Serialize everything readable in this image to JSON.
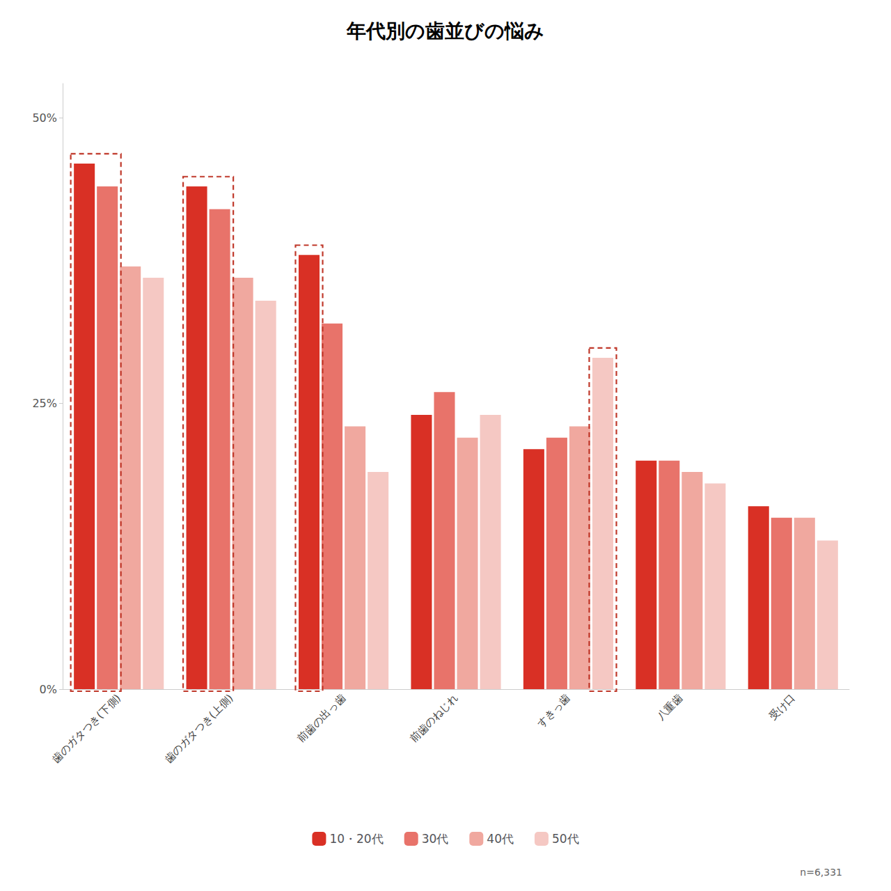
{
  "chart_data": {
    "type": "bar",
    "title": "年代別の歯並びの悩み",
    "categories": [
      "歯のガタつき(下側)",
      "歯のガタつき(上側)",
      "前歯の出っ歯",
      "前歯のねじれ",
      "すきっ歯",
      "八重歯",
      "受け口"
    ],
    "series": [
      {
        "name": "10・20代",
        "color": "#d93025",
        "values": [
          46,
          44,
          38,
          24,
          21,
          20,
          16
        ]
      },
      {
        "name": "30代",
        "color": "#e8736a",
        "values": [
          44,
          42,
          32,
          26,
          22,
          20,
          15
        ]
      },
      {
        "name": "40代",
        "color": "#f0a89f",
        "values": [
          37,
          36,
          23,
          22,
          23,
          19,
          15
        ]
      },
      {
        "name": "50代",
        "color": "#f5c8c3",
        "values": [
          36,
          34,
          19,
          24,
          29,
          18,
          13
        ]
      }
    ],
    "ylim": [
      0,
      53
    ],
    "yticks": [
      {
        "value": 0,
        "label": "0%"
      },
      {
        "value": 25,
        "label": "25%"
      },
      {
        "value": 50,
        "label": "50%"
      }
    ],
    "grid": false,
    "legend": "bottom",
    "annotations": [
      {
        "text": "n=6,331"
      }
    ],
    "highlights": [
      {
        "category": "歯のガタつき(下側)",
        "series": [
          "10・20代",
          "30代"
        ],
        "color": "#c0392b"
      },
      {
        "category": "歯のガタつき(上側)",
        "series": [
          "10・20代",
          "30代"
        ],
        "color": "#c0392b"
      },
      {
        "category": "前歯の出っ歯",
        "series": [
          "10・20代"
        ],
        "color": "#c0392b"
      },
      {
        "category": "すきっ歯",
        "series": [
          "50代"
        ],
        "color": "#c0392b"
      }
    ]
  }
}
